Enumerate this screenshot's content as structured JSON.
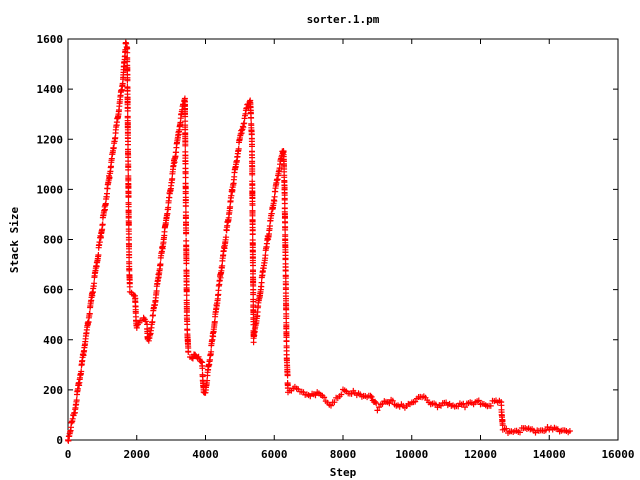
{
  "chart_data": {
    "type": "scatter",
    "title": "sorter.1.pm",
    "xlabel": "Step",
    "ylabel": "Stack Size",
    "xlim": [
      0,
      16000
    ],
    "ylim": [
      0,
      1600
    ],
    "xticks": [
      0,
      2000,
      4000,
      6000,
      8000,
      10000,
      12000,
      14000,
      16000
    ],
    "yticks": [
      0,
      200,
      400,
      600,
      800,
      1000,
      1200,
      1400,
      1600
    ],
    "grid": false,
    "legend": "none",
    "marker": "plus",
    "color": "#ff0000",
    "series": [
      {
        "points": [
          [
            0,
            0
          ],
          [
            200,
            120
          ],
          [
            400,
            300
          ],
          [
            600,
            480
          ],
          [
            800,
            670
          ],
          [
            1000,
            860
          ],
          [
            1200,
            1050
          ],
          [
            1400,
            1240
          ],
          [
            1600,
            1440
          ],
          [
            1680,
            1580
          ],
          [
            1720,
            1560
          ],
          [
            1750,
            1100
          ],
          [
            1780,
            700
          ],
          [
            1800,
            600
          ],
          [
            1900,
            590
          ],
          [
            1950,
            580
          ],
          [
            1980,
            480
          ],
          [
            2000,
            450
          ],
          [
            2100,
            470
          ],
          [
            2200,
            480
          ],
          [
            2300,
            460
          ],
          [
            2320,
            400
          ],
          [
            2350,
            390
          ],
          [
            2500,
            520
          ],
          [
            2700,
            720
          ],
          [
            2900,
            920
          ],
          [
            3100,
            1120
          ],
          [
            3300,
            1300
          ],
          [
            3400,
            1370
          ],
          [
            3430,
            900
          ],
          [
            3460,
            480
          ],
          [
            3500,
            340
          ],
          [
            3600,
            330
          ],
          [
            3700,
            350
          ],
          [
            3800,
            330
          ],
          [
            3900,
            300
          ],
          [
            3950,
            180
          ],
          [
            4000,
            200
          ],
          [
            4200,
            400
          ],
          [
            4400,
            620
          ],
          [
            4600,
            820
          ],
          [
            4800,
            1020
          ],
          [
            5000,
            1200
          ],
          [
            5200,
            1320
          ],
          [
            5300,
            1360
          ],
          [
            5350,
            1200
          ],
          [
            5380,
            700
          ],
          [
            5400,
            400
          ],
          [
            5500,
            500
          ],
          [
            5700,
            700
          ],
          [
            5900,
            880
          ],
          [
            6100,
            1050
          ],
          [
            6200,
            1120
          ],
          [
            6270,
            1160
          ],
          [
            6300,
            1000
          ],
          [
            6330,
            700
          ],
          [
            6360,
            350
          ],
          [
            6400,
            200
          ],
          [
            6600,
            200
          ],
          [
            6800,
            190
          ],
          [
            7000,
            180
          ],
          [
            7200,
            190
          ],
          [
            7400,
            170
          ],
          [
            7600,
            140
          ],
          [
            7800,
            170
          ],
          [
            8000,
            190
          ],
          [
            8200,
            180
          ],
          [
            8400,
            190
          ],
          [
            8600,
            180
          ],
          [
            8800,
            170
          ],
          [
            9000,
            130
          ],
          [
            9200,
            160
          ],
          [
            9400,
            150
          ],
          [
            9600,
            130
          ],
          [
            9800,
            140
          ],
          [
            10000,
            150
          ],
          [
            10200,
            170
          ],
          [
            10400,
            160
          ],
          [
            10600,
            150
          ],
          [
            10800,
            140
          ],
          [
            11000,
            140
          ],
          [
            11200,
            130
          ],
          [
            11400,
            150
          ],
          [
            11600,
            140
          ],
          [
            11800,
            140
          ],
          [
            12000,
            150
          ],
          [
            12200,
            140
          ],
          [
            12400,
            150
          ],
          [
            12600,
            150
          ],
          [
            12650,
            40
          ],
          [
            12800,
            40
          ],
          [
            13000,
            40
          ],
          [
            13200,
            40
          ],
          [
            13400,
            40
          ],
          [
            13600,
            40
          ],
          [
            13800,
            40
          ],
          [
            14000,
            40
          ],
          [
            14200,
            40
          ],
          [
            14400,
            40
          ],
          [
            14600,
            40
          ]
        ]
      }
    ]
  }
}
